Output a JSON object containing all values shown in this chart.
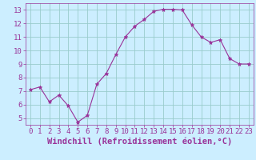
{
  "x": [
    0,
    1,
    2,
    3,
    4,
    5,
    6,
    7,
    8,
    9,
    10,
    11,
    12,
    13,
    14,
    15,
    16,
    17,
    18,
    19,
    20,
    21,
    22,
    23
  ],
  "y": [
    7.1,
    7.3,
    6.2,
    6.7,
    5.9,
    4.7,
    5.2,
    7.5,
    8.3,
    9.7,
    11.0,
    11.8,
    12.3,
    12.9,
    13.05,
    13.05,
    13.0,
    11.9,
    11.0,
    10.6,
    10.8,
    9.4,
    9.0,
    9.0
  ],
  "line_color": "#993399",
  "marker_color": "#993399",
  "bg_color": "#cceeff",
  "grid_color": "#99cccc",
  "xlabel": "Windchill (Refroidissement éolien,°C)",
  "xlabel_color": "#993399",
  "ylim": [
    4.5,
    13.5
  ],
  "xlim": [
    -0.5,
    23.5
  ],
  "yticks": [
    5,
    6,
    7,
    8,
    9,
    10,
    11,
    12,
    13
  ],
  "xticks": [
    0,
    1,
    2,
    3,
    4,
    5,
    6,
    7,
    8,
    9,
    10,
    11,
    12,
    13,
    14,
    15,
    16,
    17,
    18,
    19,
    20,
    21,
    22,
    23
  ],
  "tick_label_color": "#993399",
  "font_size": 6.5,
  "xlabel_fontsize": 7.5,
  "line_width": 0.8,
  "marker_size": 3.5
}
